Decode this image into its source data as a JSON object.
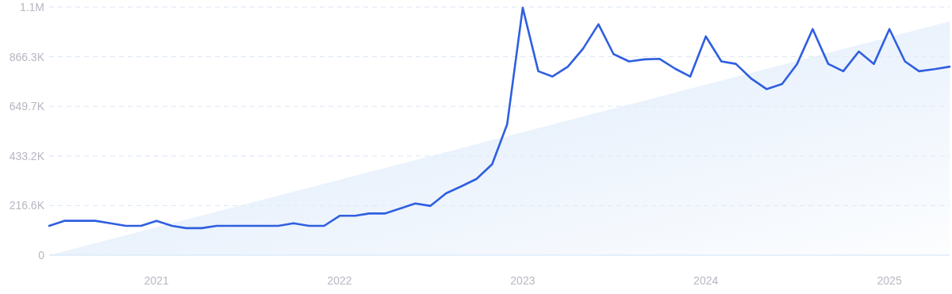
{
  "chart_data": {
    "type": "line",
    "x": [
      "2020-06",
      "2020-07",
      "2020-08",
      "2020-09",
      "2020-10",
      "2020-11",
      "2020-12",
      "2021-01",
      "2021-02",
      "2021-03",
      "2021-04",
      "2021-05",
      "2021-06",
      "2021-07",
      "2021-08",
      "2021-09",
      "2021-10",
      "2021-11",
      "2021-12",
      "2022-01",
      "2022-02",
      "2022-03",
      "2022-04",
      "2022-05",
      "2022-06",
      "2022-07",
      "2022-08",
      "2022-09",
      "2022-10",
      "2022-11",
      "2022-12",
      "2023-01",
      "2023-02",
      "2023-03",
      "2023-04",
      "2023-05",
      "2023-06",
      "2023-07",
      "2023-08",
      "2023-09",
      "2023-10",
      "2023-11",
      "2023-12",
      "2024-01",
      "2024-02",
      "2024-03",
      "2024-04",
      "2024-05",
      "2024-06",
      "2024-07",
      "2024-08",
      "2024-09",
      "2024-10",
      "2024-11",
      "2024-12",
      "2025-01",
      "2025-02",
      "2025-03",
      "2025-04",
      "2025-05"
    ],
    "series": [
      {
        "type": "area",
        "color": "#e2edfb",
        "x": [
          "2020-06",
          "2025-05"
        ],
        "values": [
          0,
          1021000
        ]
      },
      {
        "color": "#2f5fe0",
        "values": [
          128000,
          150000,
          150000,
          150000,
          139000,
          128000,
          128000,
          150000,
          128000,
          118000,
          118000,
          128000,
          128000,
          128000,
          128000,
          128000,
          139000,
          128000,
          128000,
          172000,
          172000,
          182000,
          182000,
          203000,
          226000,
          215000,
          270000,
          301000,
          333000,
          397000,
          572000,
          1080000,
          803000,
          780000,
          823000,
          901000,
          1008000,
          878000,
          846000,
          855000,
          857000,
          814000,
          780000,
          955000,
          846000,
          835000,
          770000,
          725000,
          747000,
          835000,
          987000,
          835000,
          803000,
          889000,
          835000,
          987000,
          846000,
          803000,
          812000,
          823000
        ]
      }
    ],
    "xlim": [
      "2020-06",
      "2025-05"
    ],
    "xticks": [
      {
        "value": "2021",
        "label": "2021"
      },
      {
        "value": "2022",
        "label": "2022"
      },
      {
        "value": "2023",
        "label": "2023"
      },
      {
        "value": "2024",
        "label": "2024"
      },
      {
        "value": "2025",
        "label": "2025"
      }
    ],
    "ylim": [
      0,
      1082900
    ],
    "yticks": [
      0,
      {
        "value": 216580,
        "label": "216.6K"
      },
      {
        "value": 433160,
        "label": "433.2K"
      },
      {
        "value": 649740,
        "label": "649.7K"
      },
      {
        "value": 866320,
        "label": "866.3K"
      },
      {
        "value": 1082900,
        "label": "1.1M"
      }
    ],
    "grid": "y"
  }
}
